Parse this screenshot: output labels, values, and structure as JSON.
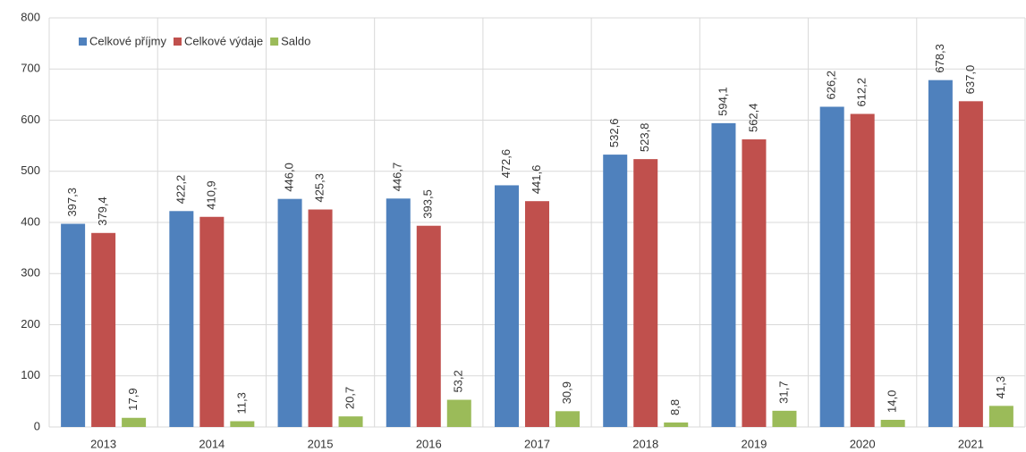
{
  "chart_data": {
    "type": "bar",
    "categories": [
      "2013",
      "2014",
      "2015",
      "2016",
      "2017",
      "2018",
      "2019",
      "2020",
      "2021"
    ],
    "series": [
      {
        "name": "Celkové příjmy",
        "color": "#4f81bd",
        "values": [
          397.3,
          422.2,
          446.0,
          446.7,
          472.6,
          532.6,
          594.1,
          626.2,
          678.3
        ],
        "value_labels": [
          "397,3",
          "422,2",
          "446,0",
          "446,7",
          "472,6",
          "532,6",
          "594,1",
          "626,2",
          "678,3"
        ]
      },
      {
        "name": "Celkové výdaje",
        "color": "#c0504d",
        "values": [
          379.4,
          410.9,
          425.3,
          393.5,
          441.6,
          523.8,
          562.4,
          612.2,
          637.0
        ],
        "value_labels": [
          "379,4",
          "410,9",
          "425,3",
          "393,5",
          "441,6",
          "523,8",
          "562,4",
          "612,2",
          "637,0"
        ]
      },
      {
        "name": "Saldo",
        "color": "#9bbb59",
        "values": [
          17.9,
          11.3,
          20.7,
          53.2,
          30.9,
          8.8,
          31.7,
          14.0,
          41.3
        ],
        "value_labels": [
          "17,9",
          "11,3",
          "20,7",
          "53,2",
          "30,9",
          "8,8",
          "31,7",
          "14,0",
          "41,3"
        ]
      }
    ],
    "ylim": [
      0,
      800
    ],
    "yticks": [
      0,
      100,
      200,
      300,
      400,
      500,
      600,
      700,
      800
    ],
    "grid": true,
    "legend": "top-left"
  }
}
